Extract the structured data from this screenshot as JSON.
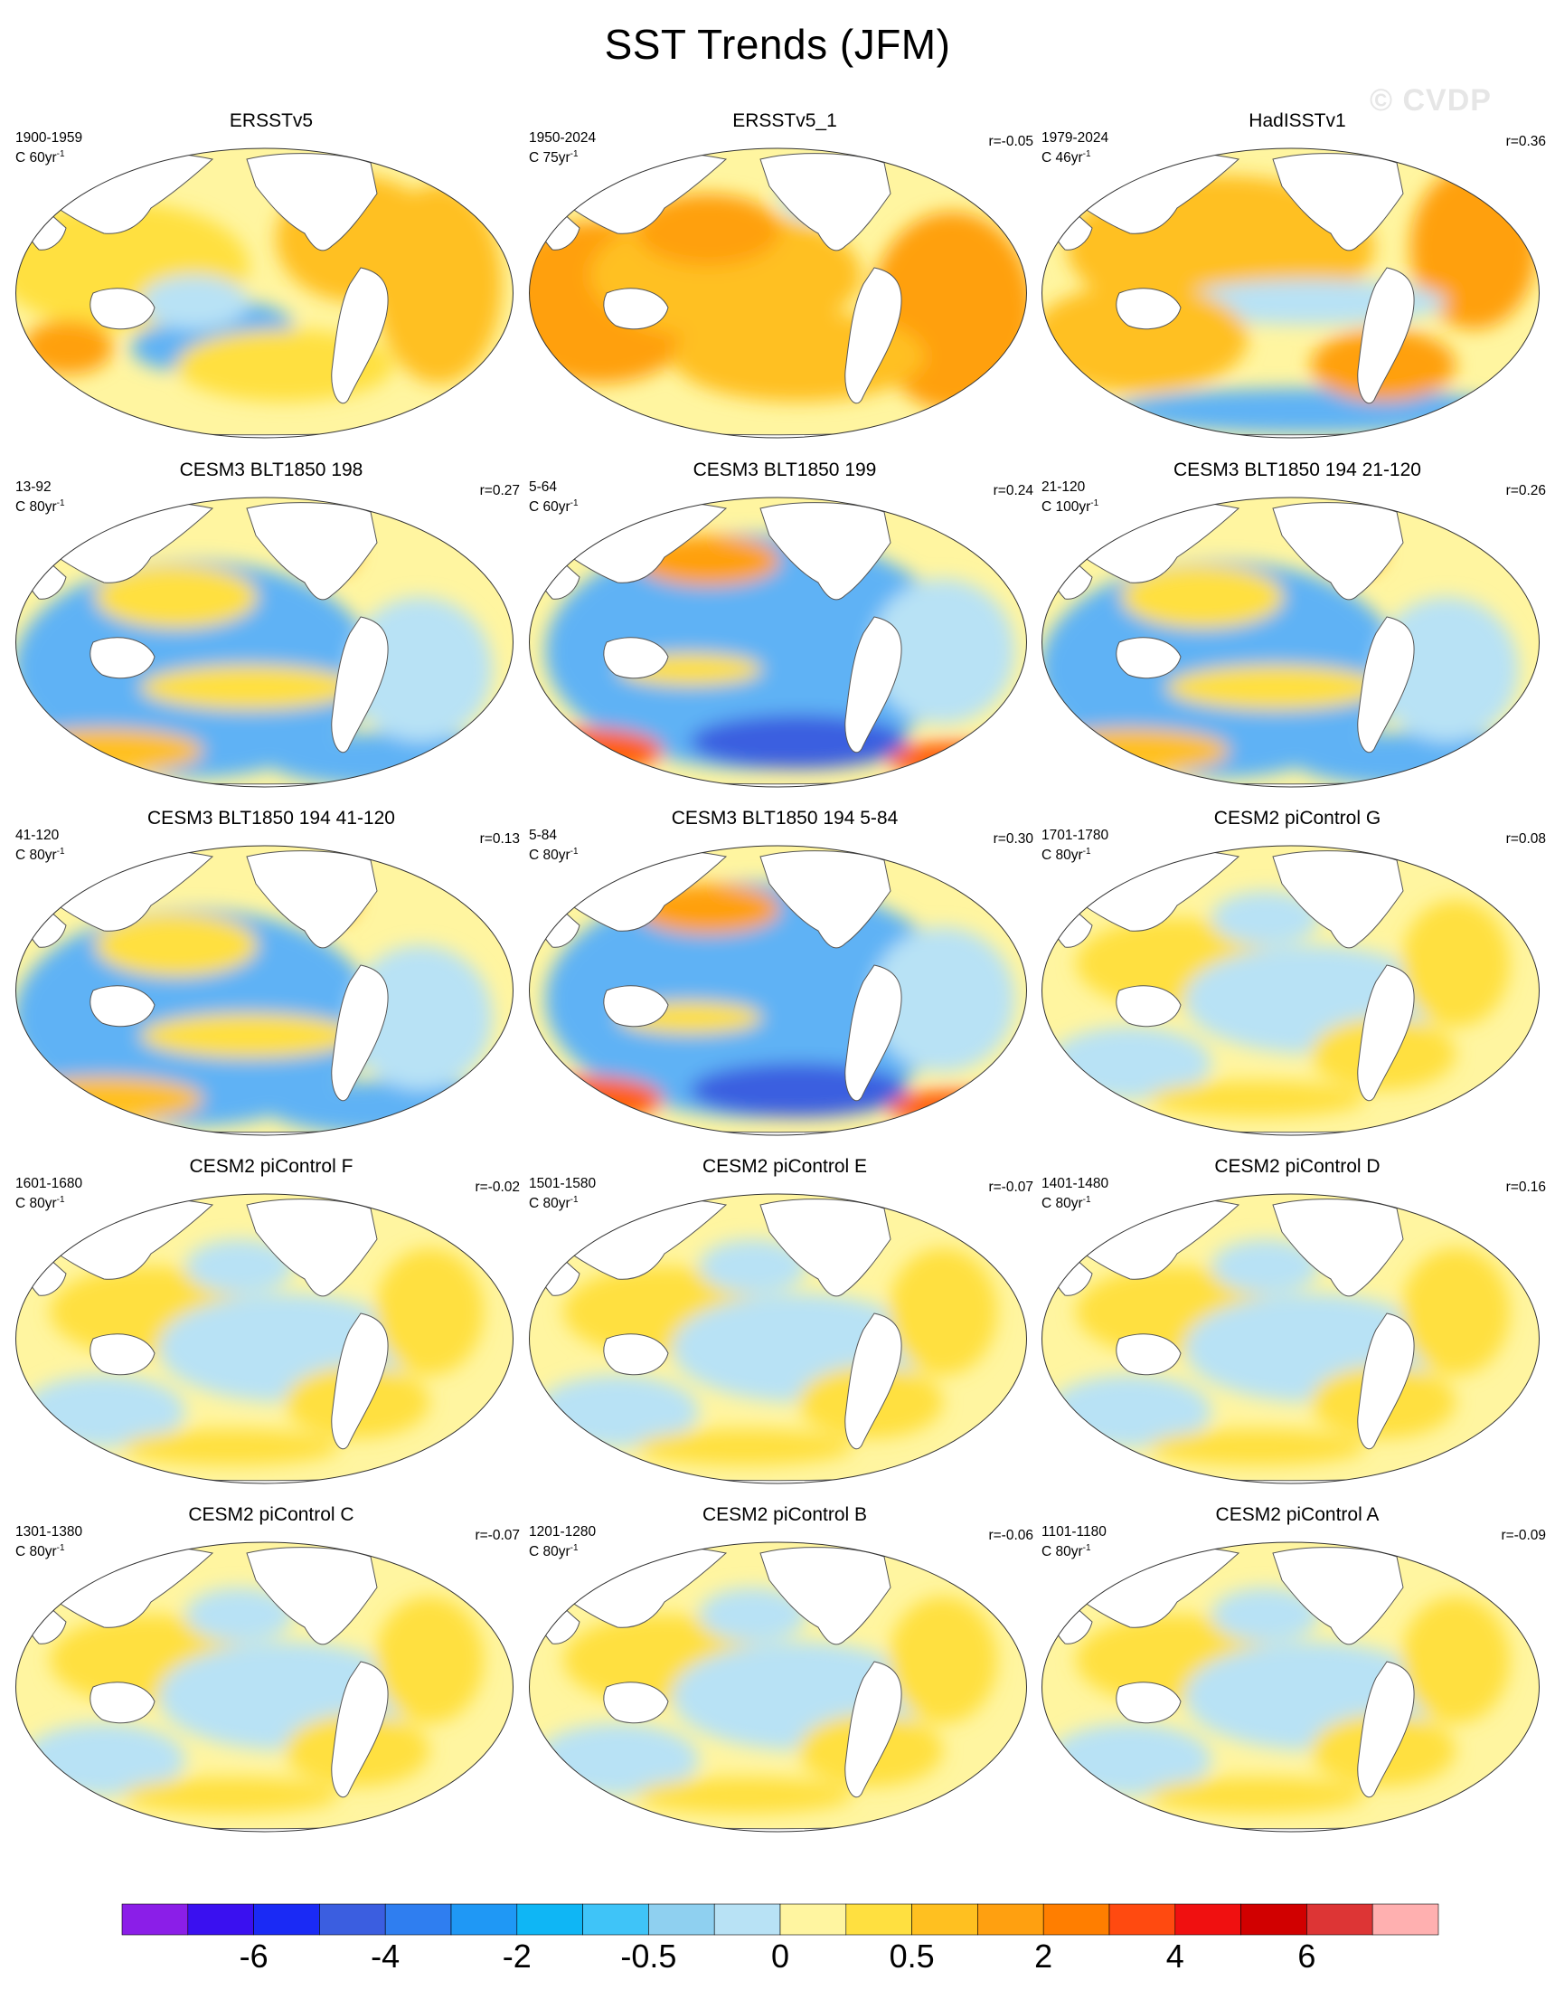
{
  "title": "SST Trends (JFM)",
  "watermark": "© CVDP",
  "units_prefix": "C ",
  "units_suffix": "yr",
  "units_exp": "-1",
  "panels": [
    {
      "title": "ERSSTv5",
      "range": "1900-1959",
      "span": "60",
      "r": "",
      "pattern": "obs_warm_mixed"
    },
    {
      "title": "ERSSTv5_1",
      "range": "1950-2024",
      "span": "75",
      "r": "r=-0.05",
      "pattern": "obs_warm"
    },
    {
      "title": "HadISSTv1",
      "range": "1979-2024",
      "span": "46",
      "r": "r=0.36",
      "pattern": "obs_warm_laneq"
    },
    {
      "title": "CESM3 BLT1850 198",
      "range": "13-92",
      "span": "80",
      "r": "r=0.27",
      "pattern": "model_cool"
    },
    {
      "title": "CESM3 BLT1850 199",
      "range": "5-64",
      "span": "60",
      "r": "r=0.24",
      "pattern": "model_cool_strong"
    },
    {
      "title": "CESM3 BLT1850 194 21-120",
      "range": "21-120",
      "span": "100",
      "r": "r=0.26",
      "pattern": "model_cool"
    },
    {
      "title": "CESM3 BLT1850 194 41-120",
      "range": "41-120",
      "span": "80",
      "r": "r=0.13",
      "pattern": "model_cool"
    },
    {
      "title": "CESM3 BLT1850 194 5-84",
      "range": "5-84",
      "span": "80",
      "r": "r=0.30",
      "pattern": "model_cool_strong"
    },
    {
      "title": "CESM2 piControl G",
      "range": "1701-1780",
      "span": "80",
      "r": "r=0.08",
      "pattern": "weak"
    },
    {
      "title": "CESM2 piControl F",
      "range": "1601-1680",
      "span": "80",
      "r": "r=-0.02",
      "pattern": "weak"
    },
    {
      "title": "CESM2 piControl E",
      "range": "1501-1580",
      "span": "80",
      "r": "r=-0.07",
      "pattern": "weak"
    },
    {
      "title": "CESM2 piControl D",
      "range": "1401-1480",
      "span": "80",
      "r": "r=0.16",
      "pattern": "weak"
    },
    {
      "title": "CESM2 piControl C",
      "range": "1301-1380",
      "span": "80",
      "r": "r=-0.07",
      "pattern": "weak"
    },
    {
      "title": "CESM2 piControl B",
      "range": "1201-1280",
      "span": "80",
      "r": "r=-0.06",
      "pattern": "weak"
    },
    {
      "title": "CESM2 piControl A",
      "range": "1101-1180",
      "span": "80",
      "r": "r=-0.09",
      "pattern": "weak"
    }
  ],
  "colorbar": {
    "colors": [
      "#8b1ee8",
      "#3a10f0",
      "#1a2af5",
      "#3b5ee0",
      "#2f7ef0",
      "#1f98f5",
      "#0fb6f5",
      "#3fc4f8",
      "#8fd0f0",
      "#b8e2f5",
      "#fff5a0",
      "#ffe040",
      "#ffc020",
      "#ffa010",
      "#ff7e00",
      "#ff4a10",
      "#f01010",
      "#d10000",
      "#dd3535",
      "#ffb0b0"
    ],
    "labels": [
      "-6",
      "-4",
      "-2",
      "-0.5",
      "0",
      "0.5",
      "2",
      "4",
      "6"
    ]
  },
  "color_scale": {
    "strong_cool": "#3b5ee0",
    "cool": "#5fb2f5",
    "light_cool": "#b8e2f5",
    "neutral": "#fff5a0",
    "warm": "#ffe040",
    "warmer": "#ffc020",
    "hot": "#ffa010",
    "very_hot": "#ff6010",
    "extreme": "#e01010"
  }
}
